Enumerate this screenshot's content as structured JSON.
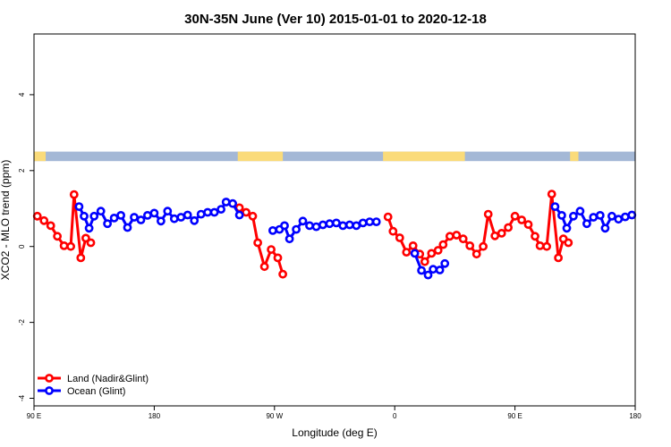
{
  "chart_data": {
    "type": "line",
    "title": "30N-35N June (Ver 10)   2015-01-01 to 2020-12-18",
    "xlabel": "Longitude (deg E)",
    "ylabel": "XCO2 - MLO trend (ppm)",
    "xlim": [
      90,
      450
    ],
    "ylim": [
      -4.2,
      5.6
    ],
    "x_ticks": [
      {
        "value": 90,
        "label": "90 E"
      },
      {
        "value": 162,
        "label": "180"
      },
      {
        "value": 234,
        "label": "90 W"
      },
      {
        "value": 306,
        "label": "0"
      },
      {
        "value": 378,
        "label": "90 E"
      },
      {
        "value": 450,
        "label": "180"
      }
    ],
    "y_ticks": [
      -4,
      -2,
      0,
      2,
      4
    ],
    "y_tick_labels": [
      "-4",
      "-2",
      "0",
      "2",
      "4"
    ],
    "grid": false,
    "legend_position": "bottom-left",
    "land_ocean_strip": {
      "y_range": [
        2.25,
        2.5
      ],
      "land_color": "#FADB7A",
      "ocean_color": "#A4B8D6",
      "land_segments": [
        [
          90,
          97
        ],
        [
          212,
          239
        ],
        [
          299,
          348
        ],
        [
          411,
          416
        ]
      ]
    },
    "series": [
      {
        "name": "Land (Nadir&Glint)",
        "color": "#FF0000",
        "segments": [
          [
            [
              92,
              0.8
            ],
            [
              96,
              0.68
            ],
            [
              100,
              0.55
            ],
            [
              104,
              0.27
            ],
            [
              108,
              0.02
            ],
            [
              112,
              0.0
            ],
            [
              114,
              1.37
            ],
            [
              118,
              -0.3
            ],
            [
              121,
              0.22
            ],
            [
              124,
              0.1
            ]
          ],
          [
            [
              213,
              1.02
            ],
            [
              217,
              0.9
            ],
            [
              221,
              0.8
            ],
            [
              224,
              0.1
            ],
            [
              228,
              -0.53
            ],
            [
              232,
              -0.08
            ],
            [
              236,
              -0.3
            ],
            [
              239,
              -0.73
            ]
          ],
          [
            [
              302,
              0.78
            ],
            [
              305,
              0.4
            ],
            [
              309,
              0.23
            ],
            [
              313,
              -0.15
            ],
            [
              317,
              0.02
            ],
            [
              321,
              -0.2
            ],
            [
              324,
              -0.4
            ],
            [
              328,
              -0.18
            ],
            [
              332,
              -0.1
            ],
            [
              335,
              0.05
            ],
            [
              339,
              0.27
            ],
            [
              343,
              0.3
            ],
            [
              347,
              0.2
            ],
            [
              351,
              0.02
            ],
            [
              355,
              -0.2
            ],
            [
              359,
              0.0
            ],
            [
              362,
              0.85
            ],
            [
              366,
              0.28
            ],
            [
              370,
              0.35
            ],
            [
              374,
              0.5
            ],
            [
              378,
              0.8
            ],
            [
              382,
              0.7
            ],
            [
              386,
              0.58
            ],
            [
              390,
              0.27
            ],
            [
              393,
              0.02
            ],
            [
              397,
              0.0
            ],
            [
              400,
              1.38
            ],
            [
              404,
              -0.3
            ],
            [
              407,
              0.2
            ],
            [
              410,
              0.1
            ]
          ]
        ]
      },
      {
        "name": "Ocean (Glint)",
        "color": "#0000FF",
        "segments": [
          [
            [
              117,
              1.05
            ],
            [
              120,
              0.8
            ],
            [
              123,
              0.48
            ],
            [
              126,
              0.8
            ],
            [
              130,
              0.93
            ],
            [
              134,
              0.6
            ],
            [
              138,
              0.75
            ],
            [
              142,
              0.82
            ],
            [
              146,
              0.5
            ],
            [
              150,
              0.77
            ],
            [
              154,
              0.7
            ],
            [
              158,
              0.82
            ],
            [
              162,
              0.88
            ],
            [
              166,
              0.67
            ],
            [
              170,
              0.93
            ],
            [
              174,
              0.73
            ],
            [
              178,
              0.77
            ],
            [
              182,
              0.83
            ],
            [
              186,
              0.68
            ],
            [
              190,
              0.85
            ],
            [
              194,
              0.9
            ],
            [
              198,
              0.9
            ],
            [
              202,
              0.98
            ],
            [
              205,
              1.17
            ],
            [
              209,
              1.13
            ],
            [
              213,
              0.83
            ]
          ],
          [
            [
              233,
              0.42
            ],
            [
              237,
              0.45
            ],
            [
              240,
              0.55
            ],
            [
              243,
              0.2
            ],
            [
              247,
              0.45
            ],
            [
              251,
              0.67
            ],
            [
              255,
              0.55
            ],
            [
              259,
              0.52
            ],
            [
              263,
              0.57
            ],
            [
              267,
              0.6
            ],
            [
              271,
              0.62
            ],
            [
              275,
              0.55
            ],
            [
              279,
              0.57
            ],
            [
              283,
              0.55
            ],
            [
              287,
              0.62
            ],
            [
              291,
              0.65
            ],
            [
              295,
              0.65
            ]
          ],
          [
            [
              318,
              -0.18
            ],
            [
              322,
              -0.63
            ],
            [
              326,
              -0.75
            ],
            [
              329,
              -0.6
            ],
            [
              333,
              -0.62
            ],
            [
              336,
              -0.45
            ]
          ],
          [
            [
              402,
              1.05
            ],
            [
              406,
              0.82
            ],
            [
              409,
              0.48
            ],
            [
              413,
              0.8
            ],
            [
              417,
              0.93
            ],
            [
              421,
              0.6
            ],
            [
              425,
              0.77
            ],
            [
              429,
              0.82
            ],
            [
              432,
              0.48
            ],
            [
              436,
              0.8
            ],
            [
              440,
              0.72
            ],
            [
              444,
              0.78
            ],
            [
              448,
              0.83
            ]
          ]
        ]
      }
    ]
  }
}
